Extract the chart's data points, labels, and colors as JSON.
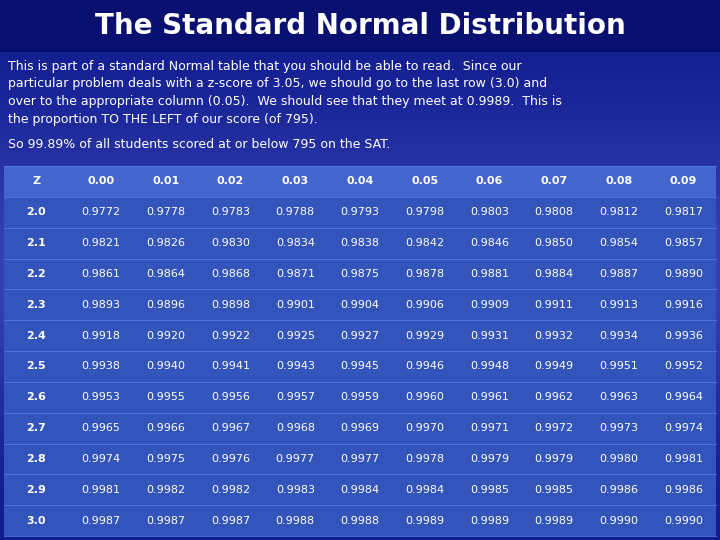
{
  "title": "The Standard Normal Distribution",
  "bg_color": "#0e1a8c",
  "text_color": "#ffffff",
  "paragraph1": "This is part of a standard Normal table that you should be able to read.  Since our\nparticular problem deals with a z-score of 3.05, we should go to the last row (3.0) and\nover to the appropriate column (0.05).  We should see that they meet at 0.9989.  This is\nthe proportion TO THE LEFT of our score (of 795).",
  "paragraph2": "So 99.89% of all students scored at or below 795 on the SAT.",
  "header": [
    "Z",
    "0.00",
    "0.01",
    "0.02",
    "0.03",
    "0.04",
    "0.05",
    "0.06",
    "0.07",
    "0.08",
    "0.09"
  ],
  "rows": [
    [
      "2.0",
      "0.9772",
      "0.9778",
      "0.9783",
      "0.9788",
      "0.9793",
      "0.9798",
      "0.9803",
      "0.9808",
      "0.9812",
      "0.9817"
    ],
    [
      "2.1",
      "0.9821",
      "0.9826",
      "0.9830",
      "0.9834",
      "0.9838",
      "0.9842",
      "0.9846",
      "0.9850",
      "0.9854",
      "0.9857"
    ],
    [
      "2.2",
      "0.9861",
      "0.9864",
      "0.9868",
      "0.9871",
      "0.9875",
      "0.9878",
      "0.9881",
      "0.9884",
      "0.9887",
      "0.9890"
    ],
    [
      "2.3",
      "0.9893",
      "0.9896",
      "0.9898",
      "0.9901",
      "0.9904",
      "0.9906",
      "0.9909",
      "0.9911",
      "0.9913",
      "0.9916"
    ],
    [
      "2.4",
      "0.9918",
      "0.9920",
      "0.9922",
      "0.9925",
      "0.9927",
      "0.9929",
      "0.9931",
      "0.9932",
      "0.9934",
      "0.9936"
    ],
    [
      "2.5",
      "0.9938",
      "0.9940",
      "0.9941",
      "0.9943",
      "0.9945",
      "0.9946",
      "0.9948",
      "0.9949",
      "0.9951",
      "0.9952"
    ],
    [
      "2.6",
      "0.9953",
      "0.9955",
      "0.9956",
      "0.9957",
      "0.9959",
      "0.9960",
      "0.9961",
      "0.9962",
      "0.9963",
      "0.9964"
    ],
    [
      "2.7",
      "0.9965",
      "0.9966",
      "0.9967",
      "0.9968",
      "0.9969",
      "0.9970",
      "0.9971",
      "0.9972",
      "0.9973",
      "0.9974"
    ],
    [
      "2.8",
      "0.9974",
      "0.9975",
      "0.9976",
      "0.9977",
      "0.9977",
      "0.9978",
      "0.9979",
      "0.9979",
      "0.9980",
      "0.9981"
    ],
    [
      "2.9",
      "0.9981",
      "0.9982",
      "0.9982",
      "0.9983",
      "0.9984",
      "0.9984",
      "0.9985",
      "0.9985",
      "0.9986",
      "0.9986"
    ],
    [
      "3.0",
      "0.9987",
      "0.9987",
      "0.9987",
      "0.9988",
      "0.9988",
      "0.9989",
      "0.9989",
      "0.9989",
      "0.9990",
      "0.9990"
    ]
  ],
  "header_bg": "#4466cc",
  "row_bg": "#3355bb",
  "title_fontsize": 20,
  "body_fontsize": 9,
  "table_fontsize": 8,
  "title_bg": "#0a1070"
}
